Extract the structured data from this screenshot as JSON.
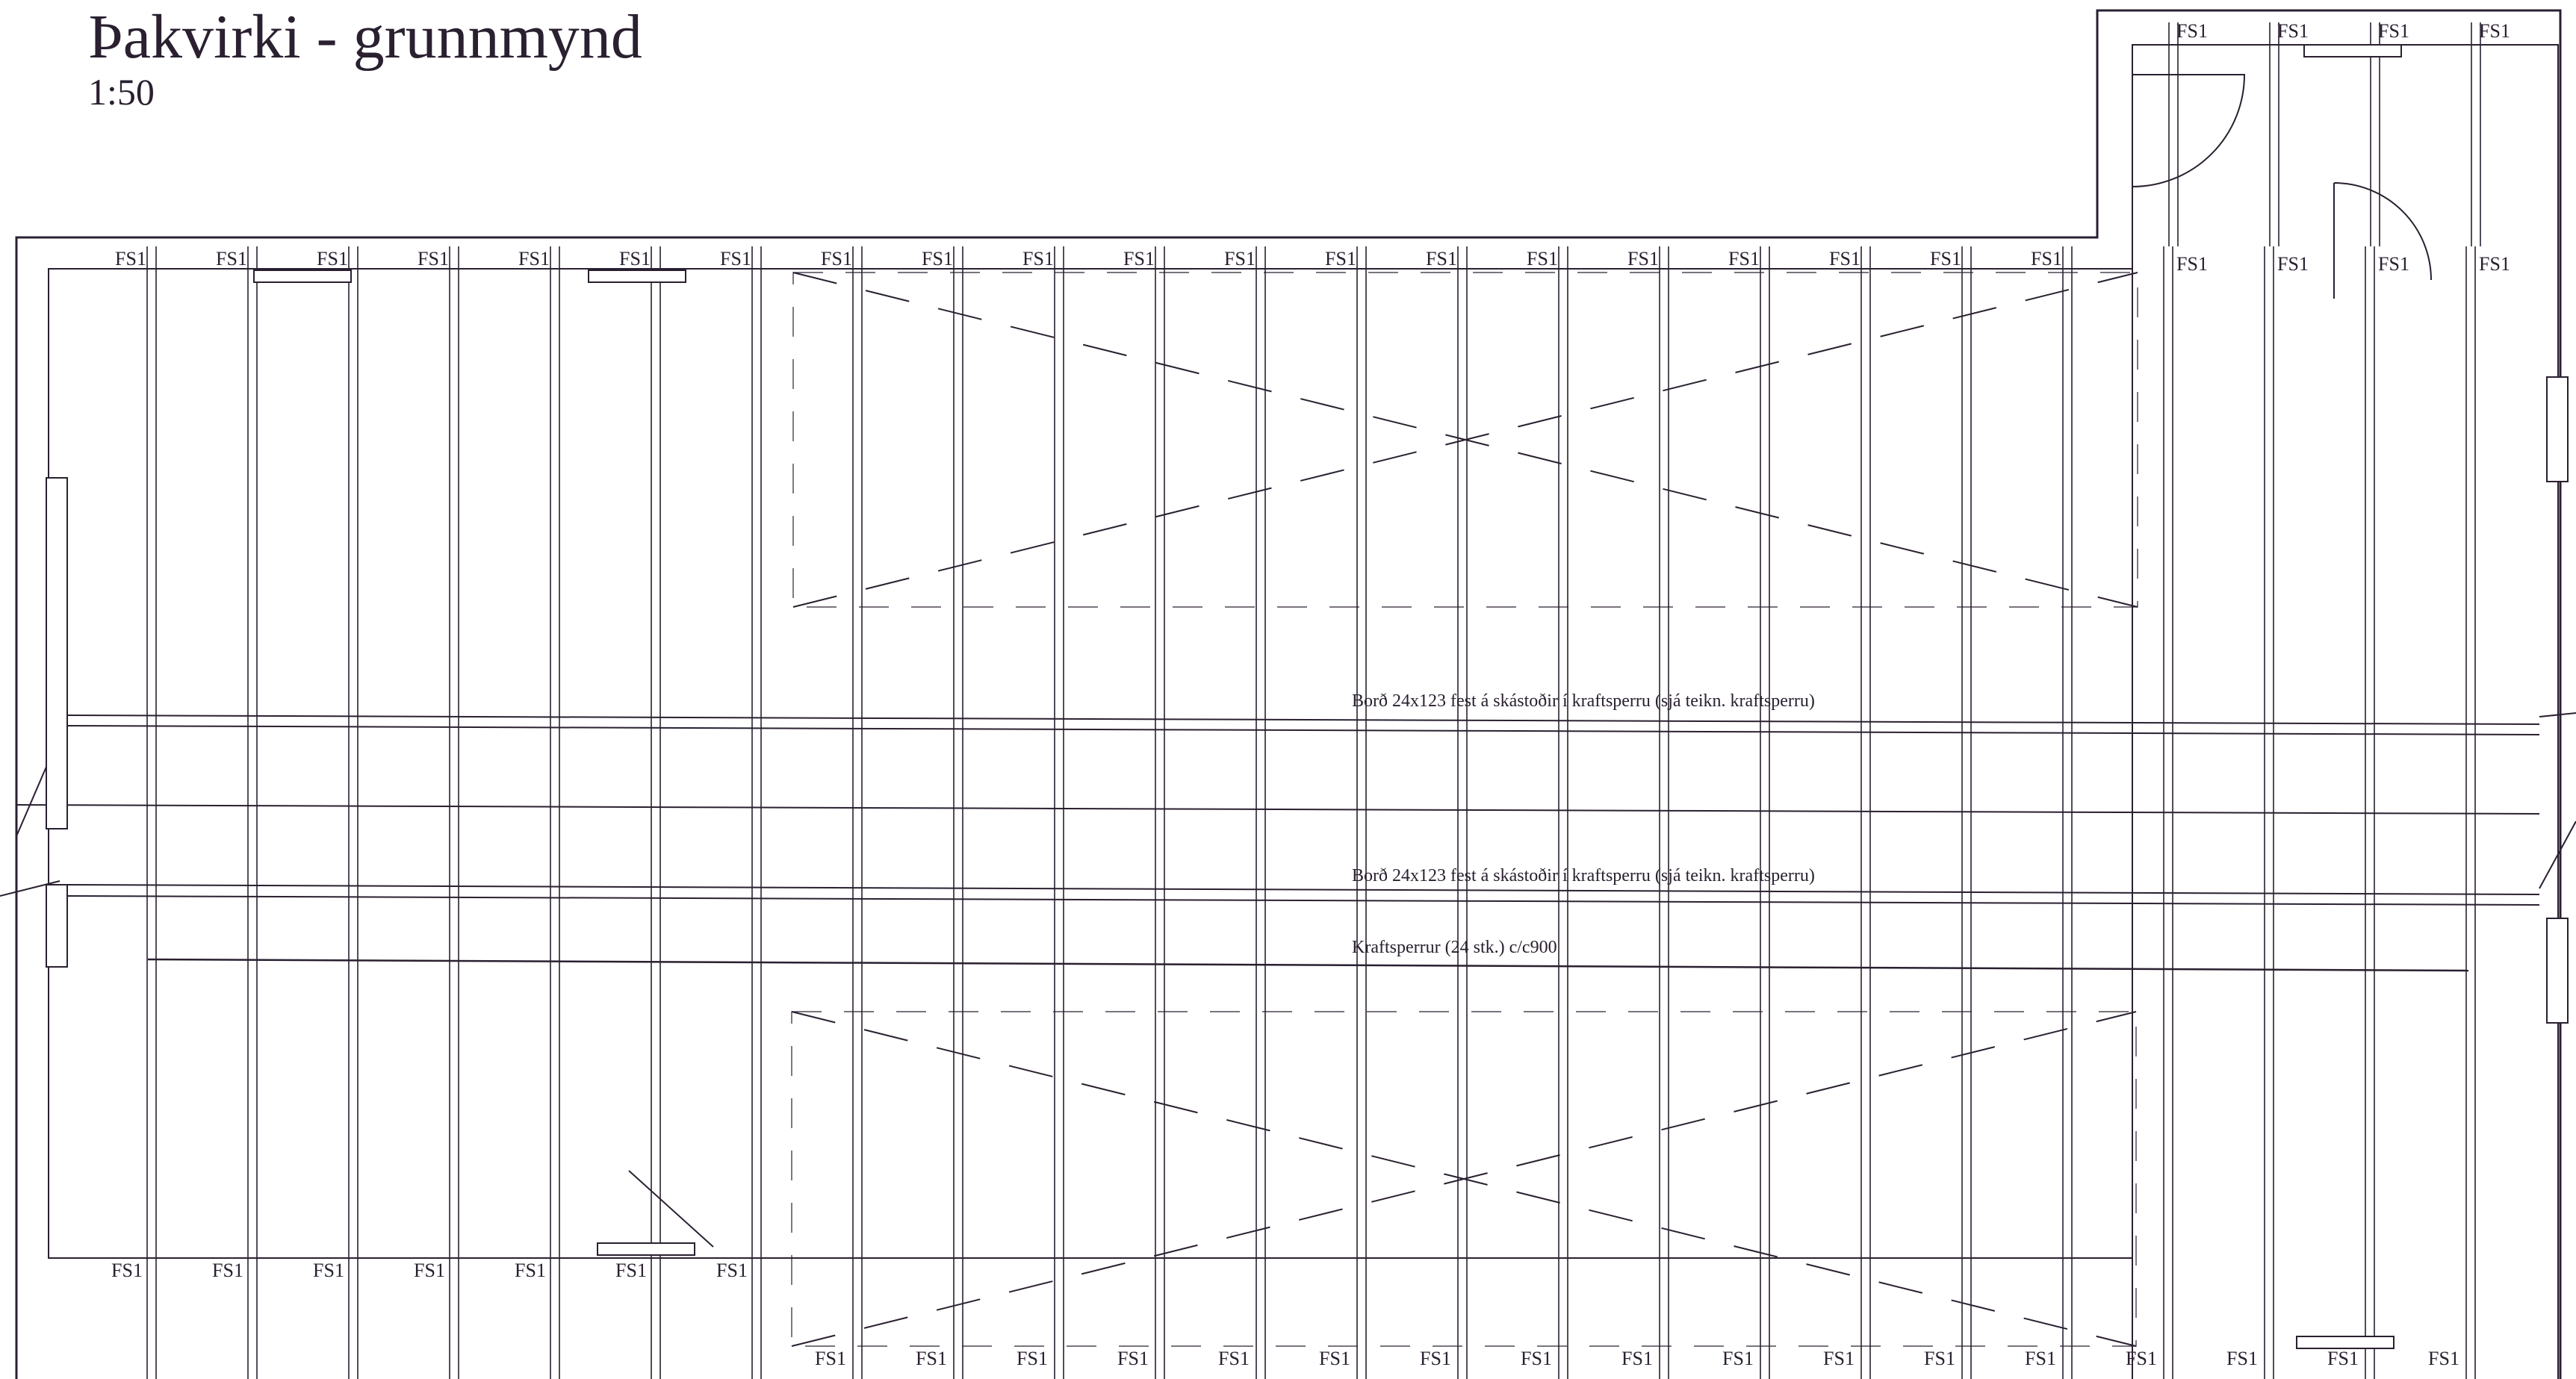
{
  "title": "Þakvirki - grunnmynd",
  "scale": "1:50",
  "annotations": {
    "board_top": "Borð 24x123 fest á skástoðir í kraftsperru (sjá teikn. kraftsperru)",
    "board_bottom": "Borð 24x123 fest á skástoðir í kraftsperru (sjá teikn. kraftsperru)",
    "trusses": "Kraftsperrur (24 stk.) c/c900"
  },
  "fs_label": "FS1",
  "colors": {
    "ink": "#2a2030",
    "paper": "#ffffff"
  }
}
